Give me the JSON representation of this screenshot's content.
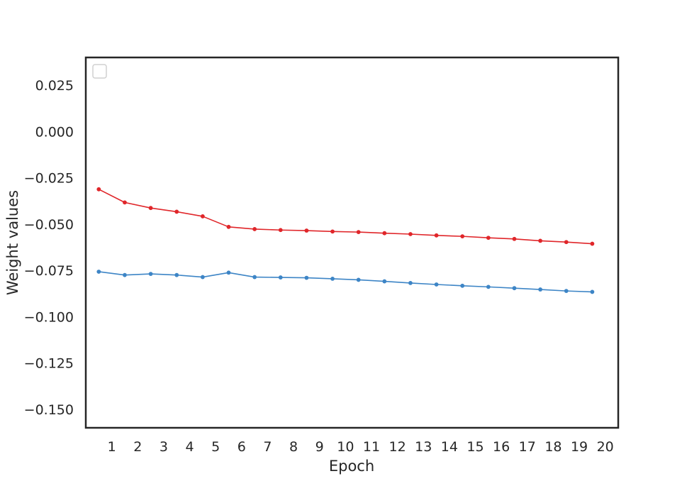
{
  "chart_data": {
    "type": "line",
    "title": "",
    "xlabel": "Epoch",
    "ylabel": "Weight values",
    "x_ticks": [
      1,
      2,
      3,
      4,
      5,
      6,
      7,
      8,
      9,
      10,
      11,
      12,
      13,
      14,
      15,
      16,
      17,
      18,
      19,
      20
    ],
    "y_ticks": [
      0.025,
      0.0,
      -0.025,
      -0.05,
      -0.075,
      -0.1,
      -0.125,
      -0.15
    ],
    "y_tick_labels": [
      "0.025",
      "0.000",
      "−0.025",
      "−0.050",
      "−0.075",
      "−0.100",
      "−0.125",
      "−0.150"
    ],
    "xlim": [
      0,
      20.5
    ],
    "ylim": [
      -0.16,
      0.04
    ],
    "grid": false,
    "legend": {
      "placement": "upper-left",
      "entries": []
    },
    "x": [
      0.5,
      1.5,
      2.5,
      3.5,
      4.5,
      5.5,
      6.5,
      7.5,
      8.5,
      9.5,
      10.5,
      11.5,
      12.5,
      13.5,
      14.5,
      15.5,
      16.5,
      17.5,
      18.5,
      19.5
    ],
    "series": [
      {
        "color": "#e0262a",
        "values": [
          -0.0312,
          -0.0383,
          -0.0413,
          -0.0433,
          -0.0458,
          -0.0515,
          -0.0527,
          -0.0532,
          -0.0535,
          -0.054,
          -0.0543,
          -0.0549,
          -0.0554,
          -0.0561,
          -0.0566,
          -0.0574,
          -0.058,
          -0.059,
          -0.0597,
          -0.0606
        ]
      },
      {
        "color": "#3d85c6",
        "values": [
          -0.0757,
          -0.0775,
          -0.0769,
          -0.0775,
          -0.0786,
          -0.0762,
          -0.0786,
          -0.0788,
          -0.079,
          -0.0795,
          -0.0801,
          -0.0809,
          -0.0818,
          -0.0826,
          -0.0833,
          -0.0839,
          -0.0846,
          -0.0853,
          -0.0861,
          -0.0866
        ]
      }
    ]
  }
}
